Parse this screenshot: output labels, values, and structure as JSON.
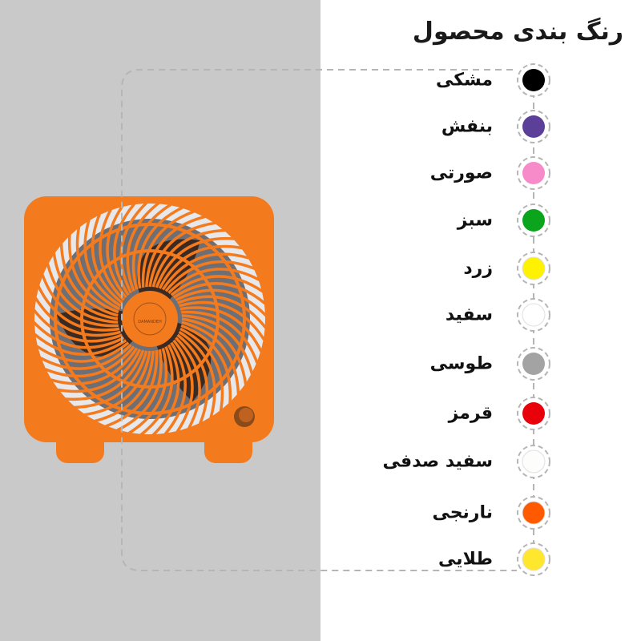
{
  "title": "رنگ بندی محصول",
  "product": {
    "logo_text": "DAMANDEH",
    "body_color": "#f47a1e"
  },
  "colors": [
    {
      "label": "مشکی",
      "hex": "#000000"
    },
    {
      "label": "بنفش",
      "hex": "#5b3f98"
    },
    {
      "label": "صورتی",
      "hex": "#f78ac8"
    },
    {
      "label": "سبز",
      "hex": "#0aa51c"
    },
    {
      "label": "زرد",
      "hex": "#fff200"
    },
    {
      "label": "سفید",
      "hex": "#ffffff"
    },
    {
      "label": "طوسی",
      "hex": "#a3a3a3"
    },
    {
      "label": "قرمز",
      "hex": "#e8000b"
    },
    {
      "label": "سفید صدفی",
      "hex": "#fdfdfb"
    },
    {
      "label": "نارنجی",
      "hex": "#ff5a00"
    },
    {
      "label": "طلایی",
      "hex": "#ffe72e"
    }
  ]
}
